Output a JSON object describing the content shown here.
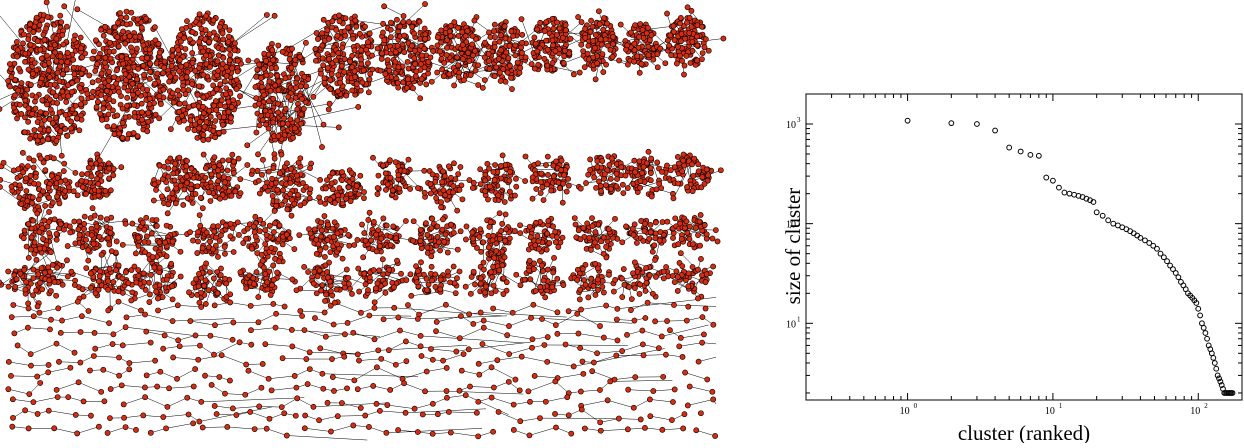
{
  "network_figure": {
    "node_color": "#d62c10",
    "edge_color": "#000000",
    "description_free": true
  },
  "chart_data": {
    "type": "scatter",
    "xscale": "log",
    "yscale": "log",
    "xlabel": "cluster (ranked)",
    "ylabel": "size of cluster",
    "xlim": [
      0.2,
      200
    ],
    "ylim": [
      1.7,
      2000
    ],
    "x_ticks": [
      {
        "value": 1,
        "base": "10",
        "exp": "0"
      },
      {
        "value": 10,
        "base": "10",
        "exp": "1"
      },
      {
        "value": 100,
        "base": "10",
        "exp": "2"
      }
    ],
    "y_ticks": [
      {
        "value": 10,
        "base": "10",
        "exp": "1"
      },
      {
        "value": 100,
        "base": "10",
        "exp": "2"
      },
      {
        "value": 1000,
        "base": "10",
        "exp": "3"
      }
    ],
    "marker": "open-circle",
    "series": [
      {
        "x": [
          1,
          2,
          3,
          4,
          5,
          6,
          7,
          8,
          9,
          10,
          11,
          12,
          13,
          14,
          15,
          16,
          17,
          18,
          19,
          20,
          22,
          24,
          26,
          28,
          30,
          32,
          34,
          36,
          38,
          40,
          43,
          46,
          49,
          52,
          55,
          58,
          61,
          64,
          67,
          70,
          73,
          76,
          79,
          82,
          85,
          88,
          91,
          94,
          97,
          100,
          103,
          106,
          109,
          112,
          115,
          118,
          121,
          124,
          127,
          130,
          133,
          136,
          139,
          142,
          145,
          148,
          151,
          154,
          157,
          160,
          163,
          166,
          169,
          172
        ],
        "y": [
          1080,
          1020,
          1000,
          860,
          580,
          530,
          490,
          480,
          290,
          270,
          230,
          205,
          200,
          195,
          190,
          185,
          178,
          172,
          165,
          130,
          120,
          108,
          100,
          96,
          92,
          88,
          84,
          80,
          76,
          72,
          68,
          64,
          60,
          56,
          50,
          46,
          42,
          38,
          35,
          32,
          29,
          26,
          24,
          22,
          20,
          19,
          18,
          17,
          16,
          14,
          12,
          10,
          9,
          8,
          7,
          6,
          5.5,
          5,
          4.5,
          4,
          3.5,
          3,
          2.8,
          2.6,
          2.4,
          2.2,
          2,
          2,
          2,
          2,
          2,
          2,
          2,
          2
        ]
      }
    ]
  }
}
